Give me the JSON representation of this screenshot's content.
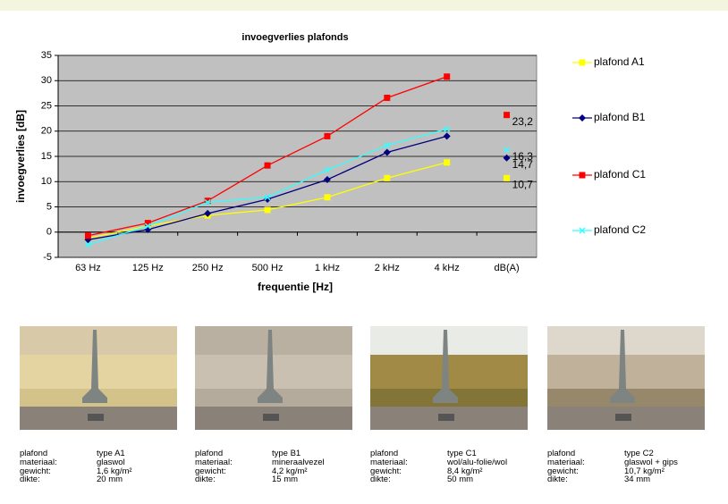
{
  "chart_data": {
    "type": "line",
    "title": "invoegverlies plafonds",
    "x_label": "frequentie [Hz]",
    "y_label": "invoegverlies [dB]",
    "categories": [
      "63 Hz",
      "125 Hz",
      "250 Hz",
      "500 Hz",
      "1 kHz",
      "2 kHz",
      "4 kHz",
      "dB(A)"
    ],
    "ylim": [
      -5,
      35
    ],
    "yticks": [
      -5,
      0,
      5,
      10,
      15,
      20,
      25,
      30,
      35
    ],
    "grid": true,
    "series": [
      {
        "name": "plafond A1",
        "color": "#ffff00",
        "marker": "square",
        "values": [
          -1.2,
          1.2,
          3.3,
          4.4,
          6.9,
          10.7,
          13.8,
          10.7
        ],
        "value_labels": [
          null,
          null,
          null,
          null,
          null,
          null,
          null,
          "10,7"
        ]
      },
      {
        "name": "plafond B1",
        "color": "#000080",
        "marker": "diamond",
        "values": [
          -1.5,
          0.5,
          3.7,
          6.5,
          10.4,
          15.8,
          19.0,
          14.7
        ],
        "value_labels": [
          null,
          null,
          null,
          null,
          null,
          null,
          null,
          "14,7"
        ]
      },
      {
        "name": "plafond C1",
        "color": "#ff0000",
        "marker": "square",
        "values": [
          -0.7,
          1.8,
          6.2,
          13.2,
          19.0,
          26.6,
          30.8,
          23.2
        ],
        "value_labels": [
          null,
          null,
          null,
          null,
          null,
          null,
          null,
          "23,2"
        ]
      },
      {
        "name": "plafond C2",
        "color": "#33ffff",
        "marker": "x",
        "values": [
          -2.5,
          1.2,
          5.9,
          6.9,
          12.3,
          17.2,
          20.4,
          16.3
        ],
        "value_labels": [
          null,
          null,
          null,
          null,
          null,
          null,
          null,
          "16,3"
        ]
      }
    ]
  },
  "panels": [
    {
      "rows": [
        [
          "plafond",
          "type A1"
        ],
        [
          "materiaal:",
          "glaswol"
        ],
        [
          "gewicht:",
          "1,6 kg/m²"
        ],
        [
          "dikte:",
          "20 mm"
        ]
      ]
    },
    {
      "rows": [
        [
          "plafond",
          "type B1"
        ],
        [
          "materiaal:",
          "mineraalvezel"
        ],
        [
          "gewicht:",
          "4,2 kg/m²"
        ],
        [
          "dikte:",
          "15 mm"
        ]
      ]
    },
    {
      "rows": [
        [
          "plafond",
          "type C1"
        ],
        [
          "materiaal:",
          "wol/alu-folie/wol"
        ],
        [
          "gewicht:",
          "8,4 kg/m²"
        ],
        [
          "dikte:",
          "50 mm"
        ]
      ]
    },
    {
      "rows": [
        [
          "plafond",
          "type C2"
        ],
        [
          "materiaal:",
          "glaswol + gips"
        ],
        [
          "gewicht:",
          "10,7 kg/m²"
        ],
        [
          "dikte:",
          "34 mm"
        ]
      ]
    }
  ]
}
